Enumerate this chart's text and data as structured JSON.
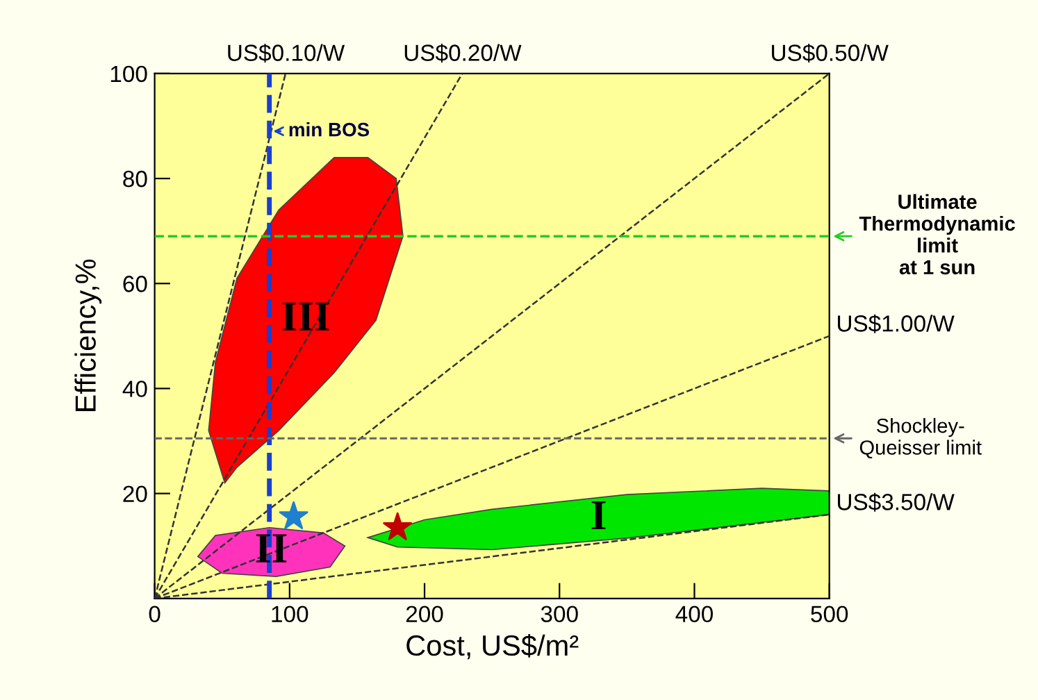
{
  "chart_data": {
    "type": "line",
    "xlabel": "Cost, US$/m²",
    "ylabel": "Efficiency,%",
    "xlim": [
      0,
      500
    ],
    "ylim": [
      0,
      100
    ],
    "xticks": [
      0,
      100,
      200,
      300,
      400,
      500
    ],
    "yticks": [
      {
        "value": 0,
        "label": null
      },
      20,
      40,
      60,
      80,
      100
    ],
    "grid": false,
    "line_style": "dashed",
    "series": [
      {
        "type": "area",
        "name": "III",
        "color": "#ff0000",
        "x": [
          52,
          40,
          45,
          61,
          92,
          133,
          158,
          179,
          184,
          164,
          133,
          92,
          61
        ],
        "values": [
          22,
          32,
          45,
          61,
          74,
          84,
          84,
          80,
          69,
          53,
          43,
          32,
          25
        ]
      },
      {
        "type": "area",
        "name": "II",
        "color": "#ff33bb",
        "x": [
          32,
          45,
          85,
          125,
          141,
          130,
          90,
          50
        ],
        "values": [
          8,
          12,
          13.5,
          12.5,
          10,
          6,
          4.2,
          4.8
        ]
      },
      {
        "type": "area",
        "name": "I",
        "color": "#00e600",
        "x": [
          158,
          200,
          250,
          350,
          450,
          500,
          500,
          450,
          350,
          250,
          180
        ],
        "values": [
          11.6,
          15,
          17,
          19.8,
          21,
          20.5,
          16,
          14.5,
          11.5,
          9.3,
          9.8
        ]
      },
      {
        "name": "US$0.10/W",
        "color": "#333333",
        "x": [
          0,
          97
        ],
        "values": [
          0,
          100
        ]
      },
      {
        "name": "US$0.20/W",
        "color": "#333333",
        "x": [
          0,
          228
        ],
        "values": [
          0,
          100
        ]
      },
      {
        "name": "US$0.50/W",
        "color": "#333333",
        "x": [
          0,
          500
        ],
        "values": [
          0,
          100
        ]
      },
      {
        "name": "US$1.00/W",
        "color": "#333333",
        "x": [
          0,
          500
        ],
        "values": [
          0,
          50
        ]
      },
      {
        "name": "US$3.50/W",
        "color": "#333333",
        "x": [
          0,
          500
        ],
        "values": [
          0,
          16
        ]
      },
      {
        "type": "scatter",
        "marker": "star",
        "x": [
          103,
          180
        ],
        "values": [
          15.6,
          13.5
        ],
        "colors": [
          "#1f7fd0",
          "#c00000"
        ]
      }
    ],
    "ref_lines": [
      {
        "axis": "x",
        "value": 85,
        "label": "min BOS",
        "color": "#1a3fd0",
        "line_style": "dashed"
      },
      {
        "axis": "y",
        "value": 69,
        "label": "Ultimate\nThermodynamic\nlimit\nat 1 sun",
        "color": "#22cc22",
        "line_style": "dashed"
      },
      {
        "axis": "y",
        "value": 30.5,
        "label": "Shockley-\nQueisser limit",
        "color": "#666666",
        "line_style": "dashed"
      }
    ]
  }
}
